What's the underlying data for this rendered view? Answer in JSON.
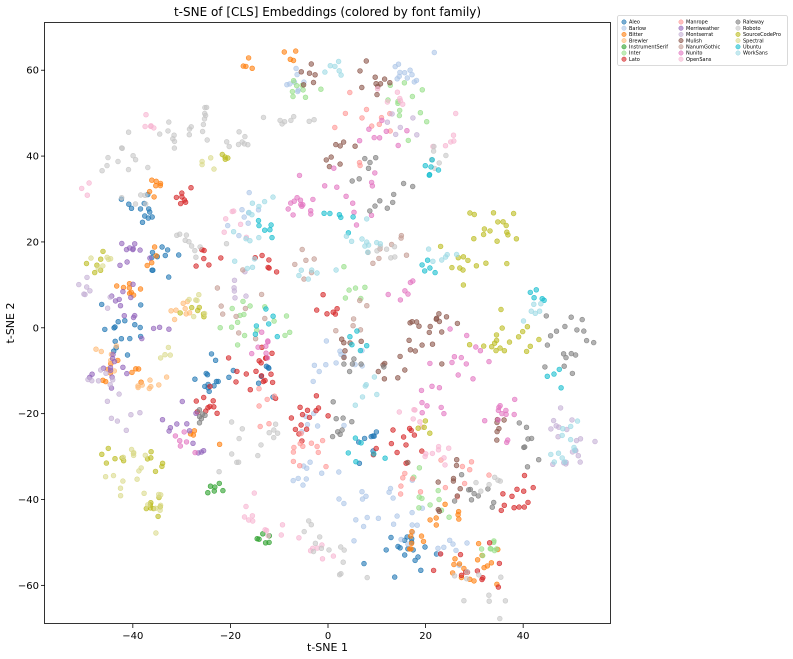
{
  "chart_data": {
    "type": "scatter",
    "title": "t-SNE of [CLS] Embeddings (colored by font family)",
    "xlabel": "t-SNE 1",
    "ylabel": "t-SNE 2",
    "xlim": [
      -58,
      58
    ],
    "ylim": [
      -69,
      71
    ],
    "xticks": [
      -40,
      -20,
      0,
      20,
      40
    ],
    "yticks": [
      -60,
      -40,
      -20,
      0,
      20,
      40,
      60
    ],
    "xtick_labels": [
      "−40",
      "−20",
      "0",
      "20",
      "40"
    ],
    "ytick_labels": [
      "−60",
      "−40",
      "−20",
      "0",
      "20",
      "40",
      "60"
    ],
    "grid": false,
    "legend_position": "outside-top-right",
    "legend_columns": 3,
    "marker_alpha": 0.6,
    "series": [
      {
        "name": "Aleo",
        "color": "#1f77b4",
        "clusters": [
          [
            -38,
            27,
            2,
            12
          ],
          [
            -42,
            0,
            2.5,
            16
          ],
          [
            -34,
            16,
            2,
            10
          ],
          [
            -24,
            -12,
            2.5,
            14
          ],
          [
            8,
            -26,
            2,
            8
          ],
          [
            -13,
            -11,
            2,
            6
          ],
          [
            18,
            -52,
            3,
            18
          ]
        ]
      },
      {
        "name": "Barlow",
        "color": "#aec7e8",
        "clusters": [
          [
            16,
            58,
            3,
            12
          ],
          [
            -7,
            55,
            2,
            8
          ],
          [
            -17,
            25,
            2,
            8
          ],
          [
            2,
            -8,
            2.5,
            12
          ],
          [
            8,
            -42,
            3,
            12
          ],
          [
            18,
            -45,
            2.5,
            10
          ],
          [
            -5,
            -35,
            3,
            10
          ],
          [
            24,
            -52,
            2,
            8
          ],
          [
            -2,
            -22,
            2,
            6
          ]
        ]
      },
      {
        "name": "Bitter",
        "color": "#ff7f0e",
        "clusters": [
          [
            -40,
            10,
            2,
            8
          ],
          [
            -42,
            -10,
            2.5,
            10
          ],
          [
            -35,
            32,
            1.5,
            7
          ],
          [
            -16,
            61,
            1,
            4
          ],
          [
            -7,
            63,
            1,
            4
          ],
          [
            20,
            -49,
            2,
            10
          ],
          [
            30,
            -55,
            3,
            16
          ],
          [
            -36,
            18,
            1.5,
            4
          ],
          [
            -26,
            -25,
            1.5,
            4
          ],
          [
            26,
            -43,
            1.5,
            4
          ]
        ]
      },
      {
        "name": "Brewler",
        "color": "#ffbb78",
        "clusters": [
          [
            -36,
            -14,
            2,
            8
          ],
          [
            -44,
            -6,
            2,
            6
          ],
          [
            -29,
            3,
            1.5,
            4
          ],
          [
            -30,
            6,
            1.5,
            4
          ]
        ]
      },
      {
        "name": "InstrumentSerif",
        "color": "#2ca02c",
        "clusters": [
          [
            -23,
            -37,
            1,
            6
          ],
          [
            -13,
            -49,
            1,
            6
          ]
        ]
      },
      {
        "name": "Inter",
        "color": "#98df8a",
        "clusters": [
          [
            15,
            51,
            3,
            12
          ],
          [
            -5,
            55,
            2,
            8
          ],
          [
            -12,
            2,
            3,
            10
          ],
          [
            22,
            -40,
            3,
            10
          ],
          [
            34,
            -52,
            2,
            8
          ],
          [
            -19,
            0,
            2,
            6
          ],
          [
            6,
            10,
            2,
            6
          ]
        ]
      },
      {
        "name": "Lato",
        "color": "#d62728",
        "clusters": [
          [
            -30,
            31,
            1.5,
            7
          ],
          [
            -14,
            -11,
            3,
            18
          ],
          [
            -5,
            -20,
            3,
            14
          ],
          [
            -25,
            -18,
            2.5,
            10
          ],
          [
            -25,
            16,
            1.5,
            6
          ],
          [
            15,
            -28,
            3,
            12
          ],
          [
            28,
            -56,
            3,
            12
          ],
          [
            39,
            -40,
            2.5,
            12
          ],
          [
            0,
            5,
            2,
            6
          ],
          [
            -12,
            14,
            2,
            6
          ]
        ]
      },
      {
        "name": "Manrope",
        "color": "#ff9896",
        "clusters": [
          [
            -5,
            -30,
            3,
            12
          ],
          [
            6,
            46,
            4,
            12
          ],
          [
            25,
            -35,
            3,
            8
          ],
          [
            -14,
            -18,
            2,
            6
          ],
          [
            15,
            -36,
            2,
            6
          ]
        ]
      },
      {
        "name": "Merriweather",
        "color": "#9467bd",
        "clusters": [
          [
            -40,
            18,
            2,
            10
          ],
          [
            -45,
            -10,
            2.5,
            12
          ],
          [
            -42,
            7,
            2,
            8
          ],
          [
            -30,
            -22,
            2,
            8
          ],
          [
            -37,
            0,
            2,
            6
          ],
          [
            -27,
            -29,
            1.5,
            4
          ]
        ]
      },
      {
        "name": "Montserrat",
        "color": "#c5b0d5",
        "clusters": [
          [
            -48,
            8,
            2,
            8
          ],
          [
            -46,
            -12,
            2,
            8
          ],
          [
            50,
            -30,
            2,
            10
          ],
          [
            46,
            -22,
            3,
            10
          ],
          [
            15,
            46,
            2.5,
            6
          ],
          [
            -18,
            10,
            2,
            6
          ],
          [
            -42,
            -20,
            2,
            6
          ]
        ]
      },
      {
        "name": "Mulish",
        "color": "#8c564b",
        "clusters": [
          [
            10,
            58,
            2.5,
            10
          ],
          [
            2,
            43,
            2,
            8
          ],
          [
            25,
            -37,
            3,
            10
          ],
          [
            22,
            0,
            3,
            16
          ],
          [
            14,
            -8,
            2.5,
            10
          ],
          [
            -3,
            58,
            2,
            6
          ],
          [
            5,
            -4,
            2,
            6
          ],
          [
            34,
            -24,
            2,
            6
          ]
        ]
      },
      {
        "name": "NanumGothic",
        "color": "#c49c94",
        "clusters": [
          [
            12,
            18,
            2.5,
            8
          ],
          [
            -16,
            4,
            3,
            10
          ],
          [
            -5,
            15,
            2,
            6
          ],
          [
            4,
            3,
            2,
            6
          ]
        ]
      },
      {
        "name": "Nunito",
        "color": "#e377c2",
        "clusters": [
          [
            -6,
            30,
            3,
            14
          ],
          [
            6,
            31,
            3,
            10
          ],
          [
            12,
            47,
            3,
            8
          ],
          [
            28,
            -6,
            2.5,
            12
          ],
          [
            36,
            -20,
            3,
            12
          ],
          [
            20,
            -16,
            2.5,
            8
          ],
          [
            -13,
            -5,
            2,
            8
          ],
          [
            -30,
            -26,
            1.5,
            6
          ],
          [
            16,
            10,
            2,
            6
          ]
        ]
      },
      {
        "name": "OpenSans",
        "color": "#f7b6d2",
        "clusters": [
          [
            -36,
            47,
            1.5,
            5
          ],
          [
            -50,
            32,
            1,
            3
          ],
          [
            -10,
            -49,
            2,
            6
          ],
          [
            -15,
            -42,
            2,
            6
          ],
          [
            22,
            -30,
            2,
            8
          ],
          [
            -19,
            24,
            2,
            6
          ],
          [
            -1,
            -52,
            2,
            6
          ],
          [
            16,
            55,
            2,
            6
          ],
          [
            24,
            44,
            2,
            6
          ],
          [
            18,
            -20,
            2,
            6
          ]
        ]
      },
      {
        "name": "Raleway",
        "color": "#7f7f7f",
        "clusters": [
          [
            7,
            37,
            2,
            6
          ],
          [
            14,
            30,
            3,
            8
          ],
          [
            48,
            -6,
            2,
            8
          ],
          [
            50,
            0,
            3,
            10
          ],
          [
            40,
            -28,
            3,
            8
          ],
          [
            30,
            -38,
            3,
            10
          ],
          [
            -26,
            -20,
            2,
            6
          ],
          [
            3,
            -21,
            2,
            8
          ],
          [
            5,
            -10,
            2,
            6
          ]
        ]
      },
      {
        "name": "Roboto",
        "color": "#c7c7c7",
        "clusters": [
          [
            -42,
            39,
            3,
            12
          ],
          [
            -26,
            48,
            2,
            10
          ],
          [
            -32,
            45,
            2,
            8
          ],
          [
            -8,
            48,
            2,
            8
          ],
          [
            -18,
            44,
            2,
            8
          ],
          [
            -28,
            20,
            3,
            10
          ],
          [
            -20,
            -28,
            2.5,
            8
          ],
          [
            -3,
            -48,
            3,
            8
          ],
          [
            4,
            -54,
            2,
            6
          ],
          [
            30,
            -61,
            3,
            10
          ],
          [
            34,
            -36,
            2,
            6
          ],
          [
            -10,
            -25,
            2,
            6
          ],
          [
            -40,
            30,
            1.5,
            4
          ],
          [
            22,
            40,
            2,
            6
          ],
          [
            13,
            18,
            2,
            6
          ]
        ]
      },
      {
        "name": "SourceCodePro",
        "color": "#bcbd22",
        "clusters": [
          [
            34,
            24,
            3.5,
            18
          ],
          [
            36,
            -2,
            3.5,
            18
          ],
          [
            26,
            16,
            2,
            8
          ],
          [
            -47,
            15,
            1.5,
            6
          ],
          [
            -36,
            -31,
            1.5,
            6
          ],
          [
            -44,
            -30,
            1.5,
            6
          ],
          [
            -36,
            -41,
            2,
            8
          ],
          [
            -27,
            4,
            1.5,
            6
          ],
          [
            -21,
            40,
            1,
            4
          ],
          [
            20,
            -23,
            1.5,
            4
          ]
        ]
      },
      {
        "name": "Spectral",
        "color": "#dbdb8d",
        "clusters": [
          [
            -46,
            15,
            1.5,
            6
          ],
          [
            -42,
            -34,
            2,
            8
          ],
          [
            -37,
            -41,
            2,
            8
          ],
          [
            -39,
            -29,
            1.5,
            6
          ],
          [
            -27,
            5,
            1.5,
            6
          ],
          [
            -33,
            -5,
            1.5,
            4
          ],
          [
            -25,
            38,
            1,
            4
          ]
        ]
      },
      {
        "name": "Ubuntu",
        "color": "#17becf",
        "clusters": [
          [
            21,
            37,
            1,
            6
          ],
          [
            21,
            14,
            1.5,
            5
          ],
          [
            43,
            8,
            1,
            5
          ],
          [
            46,
            -11,
            1.5,
            4
          ],
          [
            -14,
            24,
            2,
            6
          ],
          [
            -12,
            1,
            2,
            6
          ],
          [
            6,
            -3,
            1.5,
            5
          ],
          [
            7,
            -30,
            2,
            6
          ],
          [
            2,
            26,
            2,
            6
          ]
        ]
      },
      {
        "name": "WorkSans",
        "color": "#9edae5",
        "clusters": [
          [
            6,
            20,
            3,
            10
          ],
          [
            -16,
            18,
            3,
            8
          ],
          [
            -14,
            29,
            2,
            6
          ],
          [
            50,
            -24,
            2,
            6
          ],
          [
            44,
            4,
            2,
            6
          ],
          [
            48,
            -30,
            2,
            6
          ],
          [
            -3,
            12,
            2,
            6
          ],
          [
            24,
            17,
            2,
            6
          ],
          [
            8,
            -14,
            2,
            6
          ],
          [
            1,
            60,
            2,
            6
          ]
        ]
      }
    ]
  }
}
